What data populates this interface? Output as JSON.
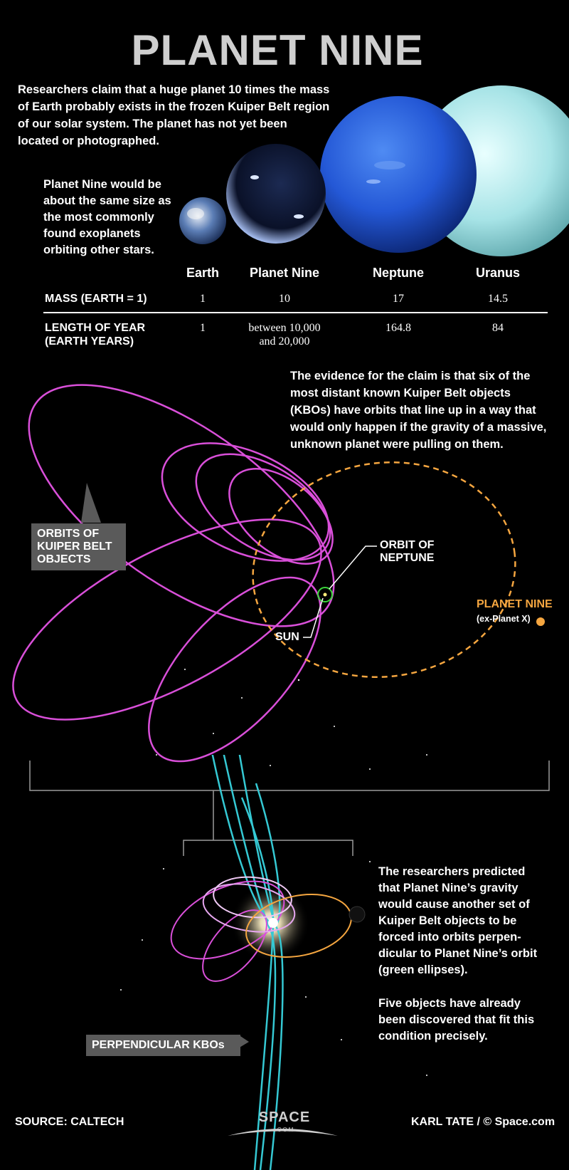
{
  "title": "PLANET NINE",
  "intro": "Researchers claim that a huge planet 10 times the mass of Earth probably exists in the frozen Kuiper Belt region of our solar system. The planet has not yet been located or photographed.",
  "size_note": "Planet Nine would be about the same size as the most commonly found exoplanets orbiting other stars.",
  "table": {
    "columns": [
      "Earth",
      "Planet Nine",
      "Neptune",
      "Uranus"
    ],
    "rows": [
      {
        "label": [
          "MASS (EARTH = 1)"
        ],
        "values": [
          [
            "1"
          ],
          [
            "10"
          ],
          [
            "17"
          ],
          [
            "14.5"
          ]
        ]
      },
      {
        "label": [
          "LENGTH OF YEAR",
          "(EARTH YEARS)"
        ],
        "values": [
          [
            "1"
          ],
          [
            "between 10,000",
            "and 20,000"
          ],
          [
            "164.8"
          ],
          [
            "84"
          ]
        ]
      }
    ]
  },
  "evidence": "The evidence for the claim is that six of the most distant known Kuiper Belt objects (KBOs) have orbits that line up in a way that would only happen if the gravity of a massive, unknown planet were pulling on them.",
  "labels": {
    "kbo_orbits": [
      "ORBITS OF",
      "KUIPER BELT",
      "OBJECTS"
    ],
    "orbit_neptune": [
      "ORBIT OF",
      "NEPTUNE"
    ],
    "sun": "SUN",
    "planet_nine": "PLANET NINE",
    "planet_nine_sub": "(ex-Planet X)",
    "perpendicular": "PERPENDICULAR KBOs"
  },
  "prediction": "The researchers predicted that Planet Nine’s gravity would cause another set of Kuiper Belt objects to be forced into orbits perpen-dicular to Planet Nine’s orbit (green ellipses).",
  "five_objects": "Five objects have already been discovered that fit this condition precisely.",
  "footer": {
    "source": "SOURCE: CALTECH",
    "logo_main": "SPACE",
    "logo_sub": ".COM",
    "credit": "KARL TATE / © Space.com"
  },
  "colors": {
    "orbit_kbo": "#d94fd9",
    "orbit_planet_nine": "#f5a640",
    "orbit_perpendicular": "#35c9d4",
    "neptune_orbit": "#3bd63b"
  }
}
